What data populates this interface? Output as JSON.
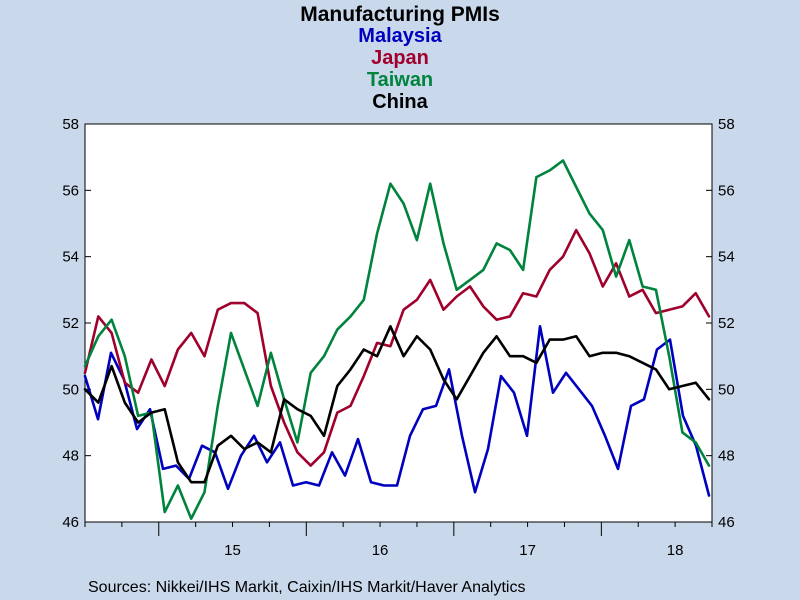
{
  "chart_data": {
    "type": "line",
    "title": "Manufacturing PMIs",
    "legend_titles": [
      {
        "text": "Malaysia",
        "color": "#0000BF"
      },
      {
        "text": "Japan",
        "color": "#A0002C"
      },
      {
        "text": "Taiwan",
        "color": "#00843D"
      },
      {
        "text": "China",
        "color": "#000000"
      }
    ],
    "source": "Sources:  Nikkei/IHS Markit, Caixin/IHS Markit/Haver Analytics",
    "ylim": [
      46,
      58
    ],
    "y_ticks": [
      "46",
      "48",
      "50",
      "52",
      "54",
      "56",
      "58"
    ],
    "x_labels": [
      "15",
      "16",
      "17",
      "18"
    ],
    "x_start": "2014-07",
    "x_end": "2018-10",
    "grid": false,
    "series": [
      {
        "name": "Malaysia",
        "color": "#0000BF",
        "values": [
          50.4,
          49.1,
          51.1,
          50.3,
          48.8,
          49.4,
          47.6,
          47.7,
          47.3,
          48.3,
          48.1,
          47.0,
          48.0,
          48.6,
          47.8,
          48.4,
          47.1,
          47.2,
          47.1,
          48.1,
          47.4,
          48.5,
          47.2,
          47.1,
          47.1,
          48.6,
          49.4,
          49.5,
          50.6,
          48.6,
          46.9,
          48.2,
          50.4,
          49.9,
          48.6,
          51.9,
          49.9,
          50.5,
          50.0,
          49.5,
          48.6,
          47.6,
          49.5,
          49.7,
          51.2,
          51.5,
          49.2,
          48.3,
          46.8
        ]
      },
      {
        "name": "Japan",
        "color": "#A0002C",
        "values": [
          50.5,
          52.2,
          51.7,
          50.2,
          49.9,
          50.9,
          50.1,
          51.2,
          51.7,
          51.0,
          52.4,
          52.6,
          52.6,
          52.3,
          50.1,
          49.0,
          48.1,
          47.7,
          48.1,
          49.3,
          49.5,
          50.4,
          51.4,
          51.3,
          52.4,
          52.7,
          53.3,
          52.4,
          52.8,
          53.1,
          52.5,
          52.1,
          52.2,
          52.9,
          52.8,
          53.6,
          54.0,
          54.8,
          54.1,
          53.1,
          53.8,
          52.8,
          53.0,
          52.3,
          52.4,
          52.5,
          52.9,
          52.2
        ]
      },
      {
        "name": "Taiwan",
        "color": "#00843D",
        "values": [
          50.7,
          51.6,
          52.1,
          51.0,
          49.2,
          49.3,
          46.3,
          47.1,
          46.1,
          46.9,
          49.5,
          51.7,
          50.6,
          49.5,
          51.1,
          49.7,
          48.4,
          50.5,
          51.0,
          51.8,
          52.2,
          52.7,
          54.7,
          56.2,
          55.6,
          54.5,
          56.2,
          54.4,
          53.0,
          53.3,
          53.6,
          54.4,
          54.2,
          53.6,
          56.4,
          56.6,
          56.9,
          56.1,
          55.3,
          54.8,
          53.4,
          54.5,
          53.1,
          53.0,
          51.0,
          48.7,
          48.4,
          47.7
        ]
      },
      {
        "name": "China",
        "color": "#000000",
        "values": [
          50.0,
          49.6,
          50.7,
          49.6,
          49.0,
          49.3,
          49.4,
          47.8,
          47.2,
          47.2,
          48.3,
          48.6,
          48.2,
          48.4,
          48.1,
          49.7,
          49.4,
          49.2,
          48.6,
          50.1,
          50.6,
          51.2,
          51.0,
          51.9,
          51.0,
          51.6,
          51.2,
          50.3,
          49.7,
          50.4,
          51.1,
          51.6,
          51.0,
          51.0,
          50.8,
          51.5,
          51.5,
          51.6,
          51.0,
          51.1,
          51.1,
          51.0,
          50.8,
          50.6,
          50.0,
          50.1,
          50.2,
          49.7
        ]
      }
    ]
  }
}
